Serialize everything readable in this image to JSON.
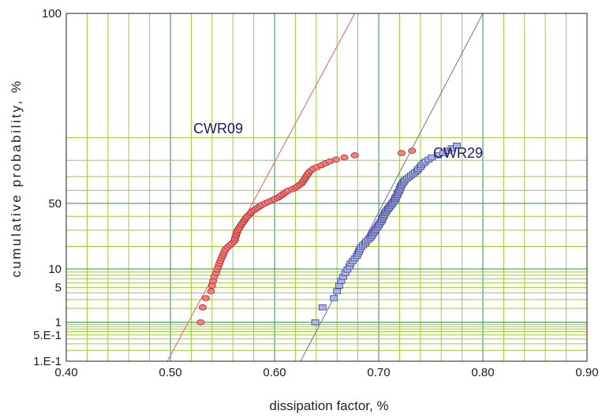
{
  "chart_data": {
    "type": "scatter",
    "xlabel": "dissipation factor, %",
    "ylabel": "cumulative probability, %",
    "xlim": [
      0.4,
      0.9
    ],
    "ylim": [
      0.1,
      100
    ],
    "x_ticks": [
      "0.40",
      "0.50",
      "0.60",
      "0.70",
      "0.80",
      "0.90"
    ],
    "y_ticks": [
      {
        "value": 0.1,
        "label": "1.E-1"
      },
      {
        "value": 0.5,
        "label": "5.E-1"
      },
      {
        "value": 1,
        "label": "1"
      },
      {
        "value": 5,
        "label": "5"
      },
      {
        "value": 10,
        "label": "10"
      },
      {
        "value": 50,
        "label": "50"
      },
      {
        "value": 100,
        "label": "100"
      }
    ],
    "y_scale": "probability (normal)",
    "grid": true,
    "colors": {
      "grid": "#9acd32",
      "grid_major": "#2e8b57",
      "cwr09_fill": "#f08080",
      "cwr09_stroke": "#b22222",
      "cwr09_fit": "#e06060",
      "cwr29_fill": "#aab4e8",
      "cwr29_stroke": "#3a3f8a",
      "cwr29_fit": "#6b6fb0"
    },
    "series": [
      {
        "name": "CWR09",
        "marker": "circle",
        "fit_line": [
          [
            0.497,
            0.1
          ],
          [
            0.677,
            99.99
          ]
        ],
        "points": [
          [
            0.529,
            1
          ],
          [
            0.531,
            2.1
          ],
          [
            0.534,
            3.2
          ],
          [
            0.539,
            4.3
          ],
          [
            0.54,
            5.4
          ],
          [
            0.541,
            6.5
          ],
          [
            0.542,
            7.6
          ],
          [
            0.544,
            8.7
          ],
          [
            0.545,
            9.8
          ],
          [
            0.546,
            10.9
          ],
          [
            0.547,
            12
          ],
          [
            0.548,
            13
          ],
          [
            0.549,
            14.1
          ],
          [
            0.55,
            15.2
          ],
          [
            0.551,
            16.3
          ],
          [
            0.552,
            17.4
          ],
          [
            0.553,
            18.5
          ],
          [
            0.555,
            19.6
          ],
          [
            0.557,
            20.7
          ],
          [
            0.559,
            21.7
          ],
          [
            0.561,
            22.8
          ],
          [
            0.562,
            23.9
          ],
          [
            0.562,
            25
          ],
          [
            0.563,
            26.1
          ],
          [
            0.563,
            27.2
          ],
          [
            0.564,
            28.3
          ],
          [
            0.564,
            29.3
          ],
          [
            0.565,
            30.4
          ],
          [
            0.566,
            31.5
          ],
          [
            0.567,
            32.6
          ],
          [
            0.568,
            33.7
          ],
          [
            0.569,
            34.8
          ],
          [
            0.57,
            35.9
          ],
          [
            0.571,
            37
          ],
          [
            0.572,
            38
          ],
          [
            0.573,
            39.1
          ],
          [
            0.574,
            40.2
          ],
          [
            0.576,
            41.3
          ],
          [
            0.577,
            42.4
          ],
          [
            0.578,
            43.5
          ],
          [
            0.58,
            44.6
          ],
          [
            0.582,
            45.7
          ],
          [
            0.584,
            46.7
          ],
          [
            0.586,
            47.8
          ],
          [
            0.588,
            48.9
          ],
          [
            0.591,
            50
          ],
          [
            0.594,
            51.1
          ],
          [
            0.597,
            52.2
          ],
          [
            0.6,
            53.3
          ],
          [
            0.603,
            54.3
          ],
          [
            0.605,
            55.4
          ],
          [
            0.607,
            56.5
          ],
          [
            0.609,
            57.6
          ],
          [
            0.611,
            58.7
          ],
          [
            0.613,
            59.8
          ],
          [
            0.617,
            60.9
          ],
          [
            0.62,
            62
          ],
          [
            0.622,
            63
          ],
          [
            0.624,
            64.1
          ],
          [
            0.626,
            65.2
          ],
          [
            0.627,
            66.3
          ],
          [
            0.628,
            67.4
          ],
          [
            0.629,
            68.5
          ],
          [
            0.63,
            69.6
          ],
          [
            0.631,
            70.7
          ],
          [
            0.632,
            71.7
          ],
          [
            0.633,
            72.8
          ],
          [
            0.635,
            73.9
          ],
          [
            0.637,
            75
          ],
          [
            0.641,
            76.1
          ],
          [
            0.645,
            77.2
          ],
          [
            0.649,
            78.3
          ],
          [
            0.653,
            79.3
          ],
          [
            0.659,
            80.4
          ],
          [
            0.667,
            81.5
          ],
          [
            0.677,
            82.6
          ],
          [
            0.722,
            83.7
          ],
          [
            0.732,
            84.8
          ]
        ]
      },
      {
        "name": "CWR29",
        "marker": "square",
        "fit_line": [
          [
            0.625,
            0.1
          ],
          [
            0.8,
            99.99
          ]
        ],
        "points": [
          [
            0.639,
            1
          ],
          [
            0.646,
            2.1
          ],
          [
            0.657,
            3.2
          ],
          [
            0.66,
            4.3
          ],
          [
            0.662,
            5.4
          ],
          [
            0.664,
            6.5
          ],
          [
            0.666,
            7.6
          ],
          [
            0.668,
            8.7
          ],
          [
            0.67,
            9.8
          ],
          [
            0.672,
            10.9
          ],
          [
            0.673,
            12
          ],
          [
            0.675,
            13
          ],
          [
            0.677,
            14.1
          ],
          [
            0.679,
            15.2
          ],
          [
            0.68,
            16.3
          ],
          [
            0.681,
            17.4
          ],
          [
            0.682,
            18.5
          ],
          [
            0.683,
            19.6
          ],
          [
            0.685,
            20.7
          ],
          [
            0.687,
            21.7
          ],
          [
            0.688,
            22.8
          ],
          [
            0.69,
            23.9
          ],
          [
            0.692,
            25
          ],
          [
            0.693,
            26.1
          ],
          [
            0.694,
            27.2
          ],
          [
            0.695,
            28.3
          ],
          [
            0.696,
            29.3
          ],
          [
            0.697,
            30.4
          ],
          [
            0.698,
            31.5
          ],
          [
            0.699,
            32.6
          ],
          [
            0.7,
            33.7
          ],
          [
            0.701,
            34.8
          ],
          [
            0.702,
            35.9
          ],
          [
            0.703,
            37
          ],
          [
            0.703,
            38
          ],
          [
            0.704,
            39.1
          ],
          [
            0.705,
            40.2
          ],
          [
            0.705,
            41.3
          ],
          [
            0.706,
            42.4
          ],
          [
            0.707,
            43.5
          ],
          [
            0.708,
            44.6
          ],
          [
            0.709,
            45.7
          ],
          [
            0.71,
            46.7
          ],
          [
            0.711,
            47.8
          ],
          [
            0.712,
            48.9
          ],
          [
            0.713,
            50
          ],
          [
            0.714,
            51.1
          ],
          [
            0.715,
            52.2
          ],
          [
            0.716,
            53.3
          ],
          [
            0.716,
            54.3
          ],
          [
            0.717,
            55.4
          ],
          [
            0.718,
            56.5
          ],
          [
            0.718,
            57.6
          ],
          [
            0.719,
            58.7
          ],
          [
            0.72,
            59.8
          ],
          [
            0.72,
            60.9
          ],
          [
            0.721,
            62
          ],
          [
            0.721,
            63
          ],
          [
            0.722,
            64.1
          ],
          [
            0.723,
            65.2
          ],
          [
            0.724,
            66.3
          ],
          [
            0.725,
            67.4
          ],
          [
            0.727,
            68.5
          ],
          [
            0.729,
            69.6
          ],
          [
            0.731,
            70.7
          ],
          [
            0.733,
            71.7
          ],
          [
            0.735,
            72.8
          ],
          [
            0.737,
            73.9
          ],
          [
            0.738,
            75
          ],
          [
            0.74,
            76.1
          ],
          [
            0.741,
            77.2
          ],
          [
            0.743,
            78.3
          ],
          [
            0.745,
            79.3
          ],
          [
            0.748,
            80.4
          ],
          [
            0.751,
            81.5
          ],
          [
            0.757,
            82.6
          ],
          [
            0.762,
            83.7
          ],
          [
            0.766,
            84.8
          ],
          [
            0.77,
            85.9
          ],
          [
            0.775,
            87
          ]
        ]
      }
    ]
  }
}
